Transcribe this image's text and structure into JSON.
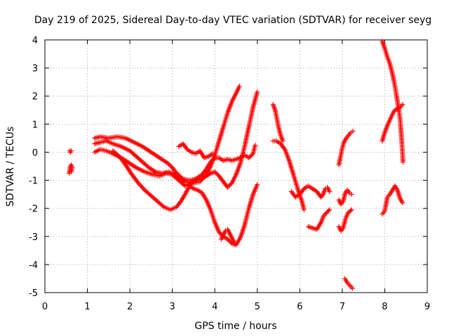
{
  "chart_data": {
    "type": "scatter",
    "title": "Day 219 of 2025, Sidereal Day-to-day VTEC variation (SDTVAR) for receiver seyg",
    "xlabel": "GPS time / hours",
    "ylabel": "SDTVAR / TECUs",
    "xlim": [
      0,
      9
    ],
    "ylim": [
      -5,
      4
    ],
    "x_ticks": [
      "0",
      "1",
      "2",
      "3",
      "4",
      "5",
      "6",
      "7",
      "8",
      "9"
    ],
    "y_ticks": [
      "4",
      "3",
      "2",
      "1",
      "0",
      "-1",
      "-2",
      "-3",
      "-4",
      "-5"
    ],
    "grid": true,
    "legend": "none",
    "marker": "plus",
    "marker_color": "#ff0000",
    "series": [
      {
        "points": [
          [
            0.58,
            0.05
          ],
          [
            0.6,
            0.0
          ],
          [
            0.62,
            0.05
          ]
        ]
      },
      {
        "points": [
          [
            0.57,
            -0.75
          ],
          [
            0.59,
            -0.6
          ],
          [
            0.6,
            -0.5
          ],
          [
            0.62,
            -0.45
          ],
          [
            0.64,
            -0.55
          ],
          [
            0.62,
            -0.7
          ]
        ]
      },
      {
        "points": [
          [
            1.17,
            0.5
          ],
          [
            1.3,
            0.55
          ],
          [
            1.5,
            0.5
          ],
          [
            1.7,
            0.55
          ],
          [
            1.9,
            0.5
          ],
          [
            2.1,
            0.35
          ],
          [
            2.3,
            0.2
          ],
          [
            2.45,
            0.05
          ],
          [
            2.6,
            -0.1
          ],
          [
            2.75,
            -0.25
          ],
          [
            2.9,
            -0.4
          ],
          [
            3.0,
            -0.55
          ],
          [
            3.1,
            -0.75
          ],
          [
            3.25,
            -0.95
          ],
          [
            3.4,
            -1.0
          ],
          [
            3.55,
            -0.95
          ],
          [
            3.7,
            -0.8
          ],
          [
            3.8,
            -0.6
          ],
          [
            3.9,
            -0.35
          ],
          [
            4.0,
            -0.2
          ],
          [
            4.1,
            -0.2
          ],
          [
            4.2,
            -0.3
          ],
          [
            4.3,
            -0.25
          ],
          [
            4.4,
            -0.3
          ],
          [
            4.5,
            -0.25
          ],
          [
            4.6,
            -0.2
          ],
          [
            4.7,
            -0.1
          ],
          [
            4.8,
            -0.2
          ],
          [
            4.9,
            -0.05
          ],
          [
            4.95,
            0.25
          ]
        ]
      },
      {
        "points": [
          [
            1.17,
            0.3
          ],
          [
            1.3,
            0.35
          ],
          [
            1.45,
            0.4
          ],
          [
            1.6,
            0.3
          ],
          [
            1.8,
            0.2
          ],
          [
            2.0,
            0.05
          ],
          [
            2.15,
            -0.15
          ],
          [
            2.3,
            -0.35
          ],
          [
            2.45,
            -0.55
          ],
          [
            2.6,
            -0.7
          ],
          [
            2.75,
            -0.75
          ],
          [
            2.9,
            -0.7
          ],
          [
            3.0,
            -0.75
          ],
          [
            3.15,
            -0.9
          ],
          [
            3.3,
            -1.05
          ],
          [
            3.5,
            -1.1
          ],
          [
            3.65,
            -1.05
          ],
          [
            3.8,
            -0.8
          ],
          [
            3.9,
            -0.5
          ],
          [
            4.0,
            -0.1
          ],
          [
            4.1,
            0.4
          ],
          [
            4.2,
            0.9
          ],
          [
            4.3,
            1.4
          ],
          [
            4.4,
            1.8
          ],
          [
            4.5,
            2.1
          ],
          [
            4.58,
            2.35
          ]
        ]
      },
      {
        "points": [
          [
            1.17,
            0.0
          ],
          [
            1.3,
            0.1
          ],
          [
            1.45,
            0.05
          ],
          [
            1.6,
            -0.05
          ],
          [
            1.8,
            -0.2
          ],
          [
            2.0,
            -0.4
          ],
          [
            2.15,
            -0.55
          ],
          [
            2.35,
            -0.7
          ],
          [
            2.55,
            -0.8
          ],
          [
            2.7,
            -0.85
          ],
          [
            2.85,
            -0.75
          ],
          [
            3.0,
            -0.8
          ],
          [
            3.15,
            -1.0
          ],
          [
            3.3,
            -1.2
          ],
          [
            3.45,
            -1.1
          ],
          [
            3.6,
            -0.95
          ],
          [
            3.75,
            -0.9
          ],
          [
            3.9,
            -0.75
          ],
          [
            4.0,
            -0.7
          ],
          [
            4.1,
            -0.85
          ],
          [
            4.2,
            -1.05
          ],
          [
            4.3,
            -1.25
          ],
          [
            4.4,
            -1.1
          ],
          [
            4.5,
            -0.8
          ],
          [
            4.6,
            -0.4
          ],
          [
            4.7,
            0.2
          ],
          [
            4.8,
            0.9
          ],
          [
            4.9,
            1.6
          ],
          [
            5.0,
            2.15
          ]
        ]
      },
      {
        "points": [
          [
            1.6,
            0.05
          ],
          [
            1.75,
            -0.15
          ],
          [
            1.9,
            -0.45
          ],
          [
            2.05,
            -0.8
          ],
          [
            2.2,
            -1.1
          ],
          [
            2.35,
            -1.35
          ],
          [
            2.5,
            -1.55
          ],
          [
            2.65,
            -1.75
          ],
          [
            2.8,
            -1.95
          ],
          [
            2.95,
            -2.05
          ],
          [
            3.1,
            -1.95
          ],
          [
            3.2,
            -1.75
          ],
          [
            3.3,
            -1.5
          ],
          [
            3.4,
            -1.2
          ],
          [
            3.5,
            -1.3
          ],
          [
            3.6,
            -1.35
          ],
          [
            3.7,
            -1.45
          ],
          [
            3.8,
            -1.7
          ],
          [
            3.9,
            -2.05
          ],
          [
            4.0,
            -2.5
          ],
          [
            4.1,
            -2.85
          ],
          [
            4.2,
            -3.0
          ],
          [
            4.3,
            -3.1
          ],
          [
            4.4,
            -3.25
          ],
          [
            4.5,
            -3.3
          ],
          [
            4.6,
            -3.05
          ],
          [
            4.7,
            -2.6
          ],
          [
            4.8,
            -2.0
          ],
          [
            4.9,
            -1.5
          ],
          [
            5.0,
            -1.15
          ]
        ]
      },
      {
        "points": [
          [
            4.15,
            -3.1
          ],
          [
            4.2,
            -2.95
          ],
          [
            4.25,
            -2.8
          ],
          [
            4.3,
            -2.75
          ],
          [
            4.35,
            -2.9
          ],
          [
            4.4,
            -3.05
          ],
          [
            4.45,
            -3.2
          ],
          [
            4.5,
            -3.3
          ]
        ]
      },
      {
        "points": [
          [
            3.15,
            0.2
          ],
          [
            3.25,
            0.3
          ],
          [
            3.35,
            0.1
          ],
          [
            3.45,
            0.0
          ],
          [
            3.55,
            -0.05
          ],
          [
            3.65,
            0.05
          ],
          [
            3.75,
            -0.2
          ],
          [
            3.85,
            -0.15
          ],
          [
            3.95,
            -0.05
          ]
        ]
      },
      {
        "points": [
          [
            5.37,
            1.7
          ],
          [
            5.42,
            1.5
          ],
          [
            5.46,
            1.2
          ],
          [
            5.5,
            0.9
          ],
          [
            5.55,
            0.6
          ],
          [
            5.6,
            0.4
          ]
        ]
      },
      {
        "points": [
          [
            5.37,
            0.4
          ],
          [
            5.45,
            0.4
          ],
          [
            5.55,
            0.3
          ],
          [
            5.65,
            0.1
          ],
          [
            5.75,
            -0.3
          ],
          [
            5.85,
            -0.8
          ],
          [
            5.95,
            -1.3
          ],
          [
            6.05,
            -1.75
          ],
          [
            6.1,
            -2.05
          ]
        ]
      },
      {
        "points": [
          [
            5.8,
            -1.4
          ],
          [
            5.9,
            -1.6
          ],
          [
            6.0,
            -1.5
          ],
          [
            6.1,
            -1.3
          ],
          [
            6.2,
            -1.2
          ],
          [
            6.3,
            -1.3
          ],
          [
            6.4,
            -1.4
          ],
          [
            6.5,
            -1.6
          ],
          [
            6.55,
            -1.5
          ],
          [
            6.6,
            -1.3
          ],
          [
            6.65,
            -1.25
          ],
          [
            6.7,
            -1.4
          ]
        ]
      },
      {
        "points": [
          [
            6.2,
            -2.65
          ],
          [
            6.3,
            -2.7
          ],
          [
            6.4,
            -2.75
          ],
          [
            6.5,
            -2.5
          ],
          [
            6.55,
            -2.3
          ],
          [
            6.6,
            -2.2
          ],
          [
            6.7,
            -2.05
          ]
        ]
      },
      {
        "points": [
          [
            6.92,
            -0.45
          ],
          [
            6.96,
            -0.15
          ],
          [
            7.0,
            0.15
          ],
          [
            7.05,
            0.4
          ],
          [
            7.12,
            0.55
          ],
          [
            7.2,
            0.7
          ],
          [
            7.25,
            0.75
          ]
        ]
      },
      {
        "points": [
          [
            6.92,
            -1.7
          ],
          [
            6.97,
            -1.85
          ],
          [
            7.02,
            -1.75
          ],
          [
            7.07,
            -1.45
          ],
          [
            7.12,
            -1.35
          ],
          [
            7.17,
            -1.45
          ],
          [
            7.22,
            -1.5
          ]
        ]
      },
      {
        "points": [
          [
            6.92,
            -2.65
          ],
          [
            6.97,
            -2.8
          ],
          [
            7.02,
            -2.7
          ],
          [
            7.08,
            -2.35
          ],
          [
            7.14,
            -2.15
          ],
          [
            7.22,
            -2.05
          ]
        ]
      },
      {
        "points": [
          [
            7.06,
            -4.5
          ],
          [
            7.12,
            -4.65
          ],
          [
            7.18,
            -4.75
          ],
          [
            7.24,
            -4.85
          ]
        ]
      },
      {
        "points": [
          [
            7.94,
            3.95
          ],
          [
            8.0,
            3.7
          ],
          [
            8.06,
            3.4
          ],
          [
            8.12,
            3.15
          ],
          [
            8.18,
            2.8
          ],
          [
            8.24,
            2.35
          ],
          [
            8.3,
            1.8
          ],
          [
            8.36,
            1.2
          ],
          [
            8.4,
            0.4
          ],
          [
            8.43,
            -0.35
          ]
        ]
      },
      {
        "points": [
          [
            7.94,
            0.4
          ],
          [
            8.0,
            0.7
          ],
          [
            8.06,
            0.95
          ],
          [
            8.12,
            1.15
          ],
          [
            8.18,
            1.35
          ],
          [
            8.24,
            1.5
          ],
          [
            8.3,
            1.55
          ],
          [
            8.36,
            1.6
          ],
          [
            8.42,
            1.7
          ]
        ]
      },
      {
        "points": [
          [
            7.94,
            -2.2
          ],
          [
            8.0,
            -2.1
          ],
          [
            8.06,
            -1.6
          ],
          [
            8.12,
            -1.5
          ],
          [
            8.18,
            -1.35
          ],
          [
            8.24,
            -1.2
          ],
          [
            8.3,
            -1.35
          ],
          [
            8.36,
            -1.65
          ],
          [
            8.42,
            -1.8
          ]
        ]
      }
    ]
  }
}
